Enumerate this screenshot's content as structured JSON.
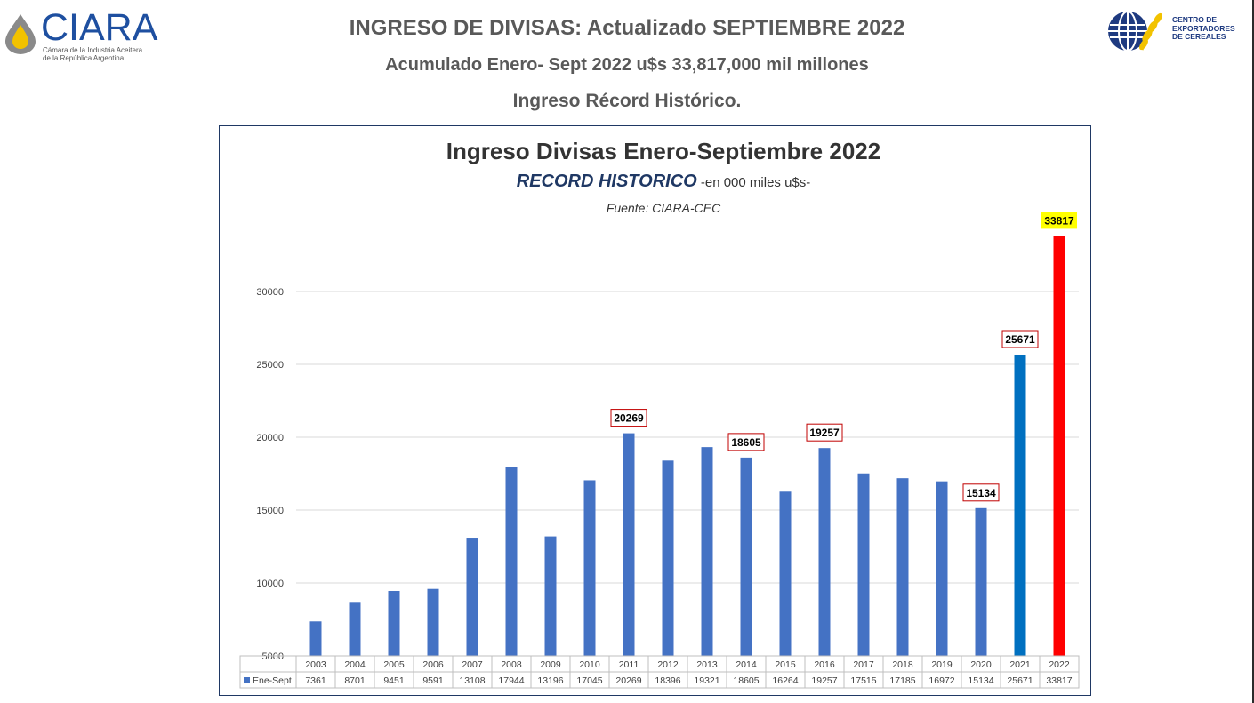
{
  "header": {
    "line1": "INGRESO DE DIVISAS: Actualizado SEPTIEMBRE 2022",
    "line2": "Acumulado Enero- Sept  2022 u$s 33,817,000 mil millones",
    "line3": "Ingreso Récord Histórico."
  },
  "logos": {
    "ciara": {
      "name": "CIARA",
      "subtitle_1": "Cámara de la Industria Aceitera",
      "subtitle_2": "de la República Argentina"
    },
    "cec": {
      "line1": "CENTRO DE",
      "line2": "EXPORTADORES",
      "line3": "DE CEREALES"
    }
  },
  "colors": {
    "bar": "#4472c4",
    "bar_2021": "#0070c0",
    "bar_2022": "#ff0000",
    "highlight_label": "#ffff00",
    "label_border": "#c00000",
    "frame": "#1f3864"
  },
  "chart_data": {
    "type": "bar",
    "title": "Ingreso Divisas Enero-Septiembre 2022",
    "subtitle_emphasis": "RECORD HISTORICO",
    "subtitle_rest": " -en 000  miles u$s-",
    "source": "Fuente: CIARA-CEC",
    "categories": [
      "2003",
      "2004",
      "2005",
      "2006",
      "2007",
      "2008",
      "2009",
      "2010",
      "2011",
      "2012",
      "2013",
      "2014",
      "2015",
      "2016",
      "2017",
      "2018",
      "2019",
      "2020",
      "2021",
      "2022"
    ],
    "series": [
      {
        "name": "Ene-Sept",
        "values": [
          7361,
          8701,
          9451,
          9591,
          13108,
          17944,
          13196,
          17045,
          20269,
          18396,
          19321,
          18605,
          16264,
          19257,
          17515,
          17185,
          16972,
          15134,
          25671,
          33817
        ]
      }
    ],
    "ylim": [
      5000,
      35000
    ],
    "yticks": [
      5000,
      10000,
      15000,
      20000,
      25000,
      30000
    ],
    "grid": true,
    "data_table": true,
    "callouts": [
      {
        "category": "2011",
        "label": "20269"
      },
      {
        "category": "2014",
        "label": "18605"
      },
      {
        "category": "2016",
        "label": "19257"
      },
      {
        "category": "2020",
        "label": "15134"
      },
      {
        "category": "2021",
        "label": "25671"
      },
      {
        "category": "2022",
        "label": "33817",
        "highlight": true
      }
    ]
  }
}
